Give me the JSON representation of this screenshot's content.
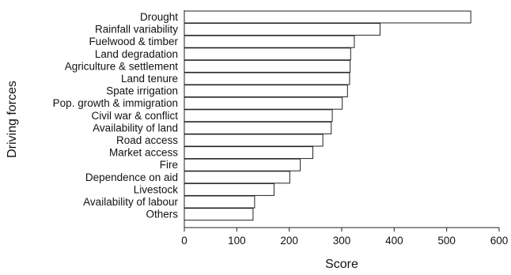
{
  "chart_data": {
    "type": "bar",
    "orientation": "horizontal",
    "categories": [
      "Drought",
      "Rainfall variability",
      "Fuelwood & timber",
      "Land degradation",
      "Agriculture & settlement",
      "Land tenure",
      "Spate irrigation",
      "Pop. growth & immigration",
      "Civil war & conflict",
      "Availability of land",
      "Road access",
      "Market access",
      "Fire",
      "Dependence on aid",
      "Livestock",
      "Availability of labour",
      "Others"
    ],
    "values": [
      546,
      373,
      324,
      317,
      316,
      315,
      311,
      301,
      282,
      280,
      264,
      245,
      221,
      201,
      171,
      134,
      131
    ],
    "xlabel": "Score",
    "ylabel": "Driving forces",
    "xlim": [
      0,
      600
    ],
    "xticks": [
      "0",
      "100",
      "200",
      "300",
      "400",
      "500",
      "600"
    ],
    "grid": false,
    "bar_fill": "#ffffff",
    "bar_stroke": "#222222"
  }
}
